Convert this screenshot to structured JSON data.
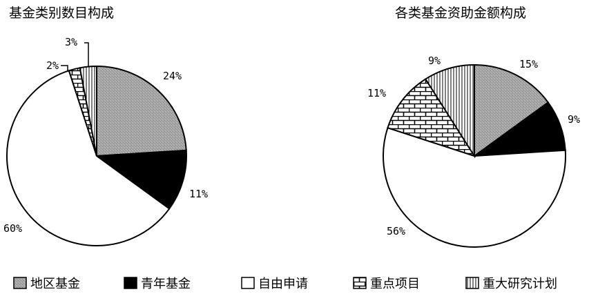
{
  "chart_data": [
    {
      "type": "pie",
      "title": "基金类别数目构成",
      "slices": [
        {
          "name": "地区基金",
          "value": 24,
          "label": "24%"
        },
        {
          "name": "青年基金",
          "value": 11,
          "label": "11%"
        },
        {
          "name": "自由申请",
          "value": 60,
          "label": "60%"
        },
        {
          "name": "重点项目",
          "value": 2,
          "label": "2%"
        },
        {
          "name": "重大研究计划",
          "value": 3,
          "label": "3%"
        }
      ]
    },
    {
      "type": "pie",
      "title": "各类基金资助金额构成",
      "slices": [
        {
          "name": "地区基金",
          "value": 15,
          "label": "15%"
        },
        {
          "name": "青年基金",
          "value": 9,
          "label": "9%"
        },
        {
          "name": "自由申请",
          "value": 56,
          "label": "56%"
        },
        {
          "name": "重点项目",
          "value": 11,
          "label": "11%"
        },
        {
          "name": "重大研究计划",
          "value": 9,
          "label": "9%"
        }
      ]
    }
  ],
  "legend": [
    {
      "name": "地区基金",
      "pattern": "gray-texture"
    },
    {
      "name": "青年基金",
      "pattern": "solid-black"
    },
    {
      "name": "自由申请",
      "pattern": "white"
    },
    {
      "name": "重点项目",
      "pattern": "brick"
    },
    {
      "name": "重大研究计划",
      "pattern": "vertical-lines"
    }
  ],
  "colors": {
    "gray": "#a8a8a8",
    "black": "#000000",
    "white": "#ffffff"
  }
}
